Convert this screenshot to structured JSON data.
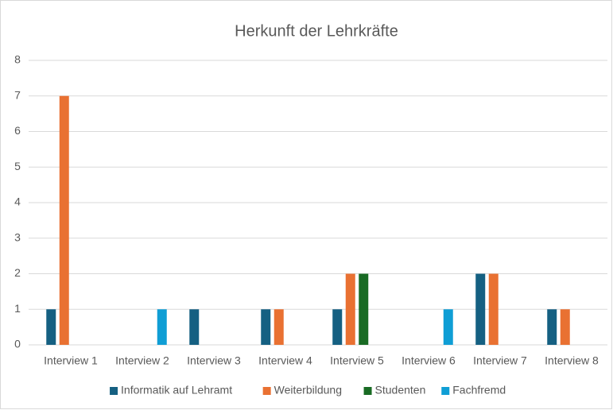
{
  "chart_data": {
    "type": "bar",
    "title": "Herkunft der Lehrkräfte",
    "categories": [
      "Interview 1",
      "Interview 2",
      "Interview 3",
      "Interview 4",
      "Interview 5",
      "Interview 6",
      "Interview 7",
      "Interview 8"
    ],
    "series": [
      {
        "name": "Informatik auf Lehramt",
        "color": "#156082",
        "values": [
          1,
          0,
          1,
          1,
          1,
          0,
          2,
          1
        ]
      },
      {
        "name": "Weiterbildung",
        "color": "#e97132",
        "values": [
          7,
          0,
          0,
          1,
          2,
          0,
          2,
          1
        ]
      },
      {
        "name": "Studenten",
        "color": "#196b24",
        "values": [
          0,
          0,
          0,
          0,
          2,
          0,
          0,
          0
        ]
      },
      {
        "name": "Fachfremd",
        "color": "#0f9ed5",
        "values": [
          0,
          1,
          0,
          0,
          0,
          1,
          0,
          0
        ]
      }
    ],
    "ylim": [
      0,
      8
    ],
    "yticks": [
      0,
      1,
      2,
      3,
      4,
      5,
      6,
      7,
      8
    ],
    "grid": true,
    "legend": "bottom"
  }
}
